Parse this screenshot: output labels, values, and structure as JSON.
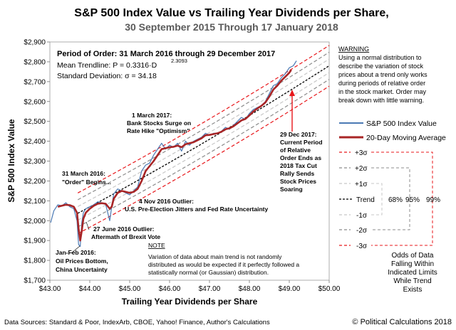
{
  "chart_data": {
    "type": "line",
    "title": "S&P 500 Index Value vs Trailing Year Dividends per Share,",
    "subtitle": "30 September 2015 Through 17 January 2018",
    "xlabel": "Trailing Year Dividends per Share",
    "ylabel": "S&P 500 Index Value",
    "xlim": [
      43.0,
      50.0
    ],
    "ylim": [
      1700,
      2900
    ],
    "x_ticks": [
      43,
      44,
      45,
      46,
      47,
      48,
      49,
      50
    ],
    "x_tick_labels": [
      "$43.00",
      "$44.00",
      "$45.00",
      "$46.00",
      "$47.00",
      "$48.00",
      "$49.00",
      "$50.00"
    ],
    "y_ticks": [
      1700,
      1800,
      1900,
      2000,
      2100,
      2200,
      2300,
      2400,
      2500,
      2600,
      2700,
      2800,
      2900
    ],
    "y_tick_labels": [
      "$1,700",
      "$1,800",
      "$1,900",
      "$2,000",
      "$2,100",
      "$2,200",
      "$2,300",
      "$2,400",
      "$2,500",
      "$2,600",
      "$2,700",
      "$2,800",
      "$2,900"
    ],
    "order_box": {
      "line1": "Period of Order: 31 March 2016 through 29 December 2017",
      "line2": "Mean Trendline: P = 0.3316·D",
      "exponent": "2.3093",
      "line3": "Standard Deviation: σ = 34.18"
    },
    "trend": {
      "coef": 0.3316,
      "exp": 2.3093,
      "sigma": 34.18,
      "x_from": 43.7,
      "x_to": 50.0
    },
    "bands": [
      {
        "k": 3,
        "color": "#e8171b",
        "label": "+3σ"
      },
      {
        "k": 2,
        "color": "#8c8c8c",
        "label": "+2σ"
      },
      {
        "k": 1,
        "color": "#c7c7c7",
        "label": "+1σ"
      },
      {
        "k": -1,
        "color": "#c7c7c7",
        "label": "-1σ"
      },
      {
        "k": -2,
        "color": "#8c8c8c",
        "label": "-2σ"
      },
      {
        "k": -3,
        "color": "#e8171b",
        "label": "-3σ"
      }
    ],
    "series": [
      {
        "name": "S&P 500 Index Value",
        "color": "#4a79b4",
        "x": [
          43.02,
          43.1,
          43.2,
          43.3,
          43.4,
          43.5,
          43.6,
          43.68,
          43.72,
          43.76,
          43.8,
          43.84,
          43.9,
          44.0,
          44.1,
          44.2,
          44.3,
          44.4,
          44.5,
          44.55,
          44.6,
          44.7,
          44.8,
          44.9,
          45.0,
          45.1,
          45.2,
          45.3,
          45.4,
          45.5,
          45.6,
          45.7,
          45.8,
          45.9,
          46.0,
          46.1,
          46.2,
          46.3,
          46.4,
          46.5,
          46.6,
          46.7,
          46.8,
          46.9,
          47.0,
          47.1,
          47.2,
          47.3,
          47.4,
          47.5,
          47.6,
          47.7,
          47.8,
          47.9,
          48.0,
          48.1,
          48.2,
          48.3,
          48.4,
          48.5,
          48.6,
          48.7,
          48.8,
          48.9,
          49.0,
          49.1,
          49.18
        ],
        "values": [
          1990,
          2050,
          2080,
          2075,
          2090,
          2070,
          2060,
          2000,
          1880,
          1870,
          1990,
          2040,
          2060,
          2070,
          2080,
          2095,
          2090,
          2080,
          2000,
          2070,
          2135,
          2160,
          2150,
          2140,
          2130,
          2150,
          2170,
          2250,
          2280,
          2290,
          2330,
          2360,
          2390,
          2360,
          2380,
          2370,
          2390,
          2350,
          2400,
          2380,
          2400,
          2410,
          2420,
          2440,
          2430,
          2440,
          2440,
          2450,
          2470,
          2460,
          2480,
          2500,
          2520,
          2510,
          2540,
          2560,
          2570,
          2580,
          2600,
          2640,
          2680,
          2690,
          2720,
          2740,
          2770,
          2780,
          2805
        ]
      },
      {
        "name": "20-Day Moving Average",
        "color": "#a82526",
        "x": [
          43.2,
          43.3,
          43.4,
          43.5,
          43.6,
          43.68,
          43.72,
          43.76,
          43.8,
          43.84,
          43.9,
          44.0,
          44.1,
          44.2,
          44.3,
          44.4,
          44.5,
          44.55,
          44.6,
          44.7,
          44.8,
          44.9,
          45.0,
          45.1,
          45.2,
          45.3,
          45.4,
          45.5,
          45.6,
          45.7,
          45.8,
          45.9,
          46.0,
          46.1,
          46.2,
          46.3,
          46.4,
          46.5,
          46.6,
          46.7,
          46.8,
          46.9,
          47.0,
          47.1,
          47.2,
          47.3,
          47.4,
          47.5,
          47.6,
          47.7,
          47.8,
          47.9,
          48.0,
          48.1,
          48.2,
          48.3,
          48.4,
          48.5,
          48.6,
          48.7,
          48.8,
          48.9,
          49.0,
          49.05
        ],
        "values": [
          2070,
          2075,
          2080,
          2078,
          2070,
          2040,
          1960,
          1900,
          1950,
          2010,
          2040,
          2060,
          2075,
          2085,
          2088,
          2085,
          2060,
          2070,
          2110,
          2140,
          2150,
          2145,
          2140,
          2145,
          2160,
          2200,
          2250,
          2275,
          2300,
          2330,
          2360,
          2365,
          2370,
          2372,
          2378,
          2370,
          2385,
          2390,
          2395,
          2405,
          2415,
          2430,
          2432,
          2436,
          2440,
          2448,
          2460,
          2465,
          2475,
          2490,
          2505,
          2512,
          2530,
          2550,
          2565,
          2578,
          2595,
          2625,
          2660,
          2680,
          2705,
          2725,
          2745,
          2760
        ]
      }
    ],
    "legend": {
      "sp500": "S&P 500 Index Value",
      "ma20": "20-Day Moving Average",
      "plus3": "+3σ",
      "plus2": "+2σ",
      "plus1": "+1σ",
      "trend": "Trend",
      "minus1": "-1σ",
      "minus2": "-2σ",
      "minus3": "-3σ",
      "p68": "68%",
      "p95": "95%",
      "p99": "99%",
      "odds": [
        "Odds of Data",
        "Falling Within",
        "Indicated Limits",
        "While Trend",
        "Exists"
      ]
    },
    "warning": {
      "title": "WARNING",
      "lines": [
        "Using a normal distribution to",
        "describe the variation of stock",
        "prices about a trend only works",
        "during periods of relative order",
        "in the stock market.  Order may",
        "break down with little warning."
      ]
    },
    "note": {
      "title": "NOTE",
      "lines": [
        "Variation of data about main trend is not randomly",
        "distributed as would be expected if it perfectly followed a",
        "statistically normal (or Gaussian) distribution."
      ]
    },
    "annotations": {
      "mar2017": [
        "1 March 2017:",
        "Bank Stocks Surge on",
        "Rate Hike \"Optimism\""
      ],
      "mar2016": [
        "31 March 2016:",
        "\"Order\" Begins..."
      ],
      "nov2016": [
        "4 Nov 2016 Outlier:",
        "U.S. Pre-Election Jitters and Fed Rate Uncertainty"
      ],
      "jun2016": [
        "27 June 2016  Outlier:",
        "Aftermath of Brexit Vote"
      ],
      "janfeb2016": [
        "Jan-Feb 2016:",
        "Oil Prices Bottom,",
        "China Uncertainty"
      ],
      "dec2017": [
        "29 Dec 2017:",
        "Current Period",
        "of Relative",
        "Order Ends as",
        "2018 Tax Cut",
        "Rally Sends",
        "Stock Prices",
        "Soaring"
      ]
    },
    "footer": {
      "sources": "Data Sources: Standard & Poor, IndexArb, CBOE, Yahoo! Finance, Author's Calculations",
      "copyright": "© Political Calculations 2018"
    }
  }
}
